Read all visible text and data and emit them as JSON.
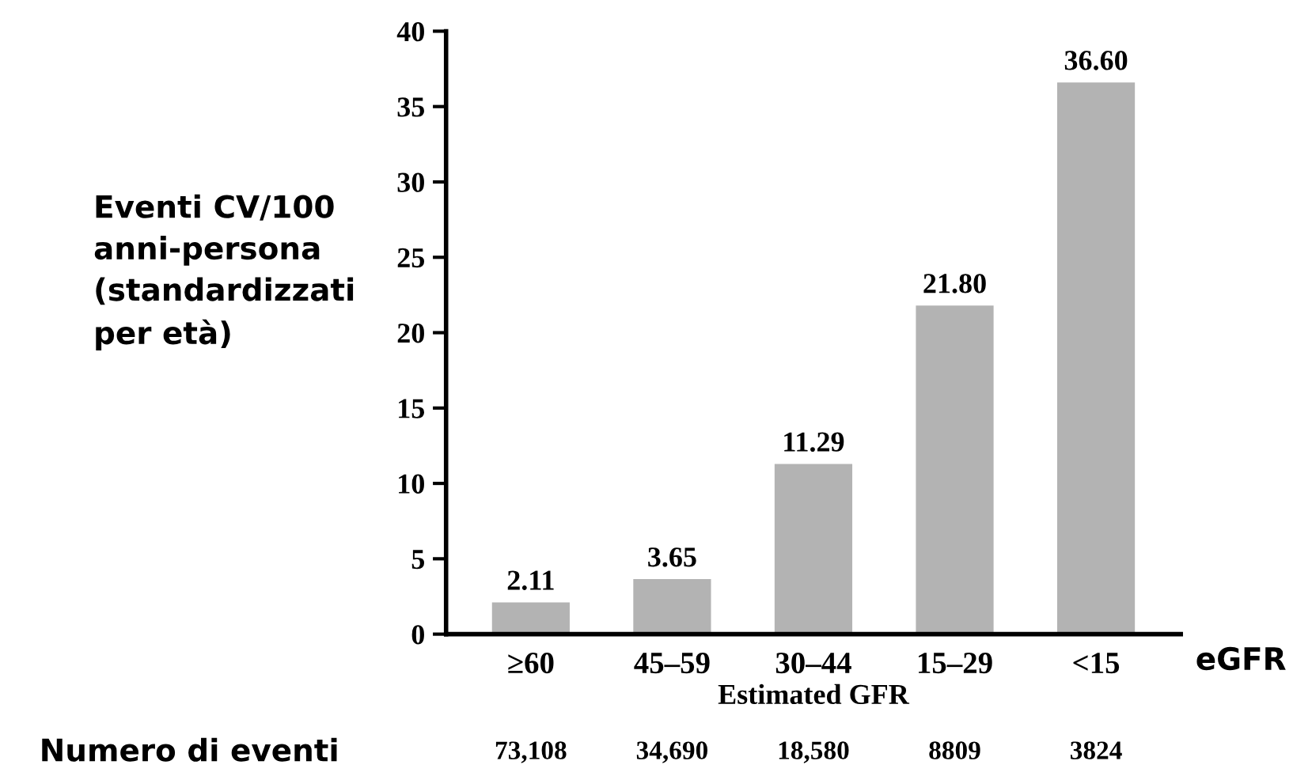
{
  "chart_data": {
    "type": "bar",
    "ylabel": "Eventi CV/100\nanni-persona\n(standardizzati\nper età)",
    "xlabel": "Estimated GFR",
    "categories": [
      "≥60",
      "45–59",
      "30–44",
      "15–29",
      "<15"
    ],
    "values": [
      2.11,
      3.65,
      11.29,
      21.8,
      36.6
    ],
    "value_labels": [
      "2.11",
      "3.65",
      "11.29",
      "21.80",
      "36.60"
    ],
    "color": "#b3b3b3",
    "ylim": [
      0,
      40
    ],
    "yticks": [
      0,
      5,
      10,
      15,
      20,
      25,
      30,
      35,
      40
    ],
    "annotations": [
      "eGFR",
      "Numero di eventi",
      "73,108",
      "34,690",
      "18,580",
      "8809",
      "3824"
    ]
  }
}
